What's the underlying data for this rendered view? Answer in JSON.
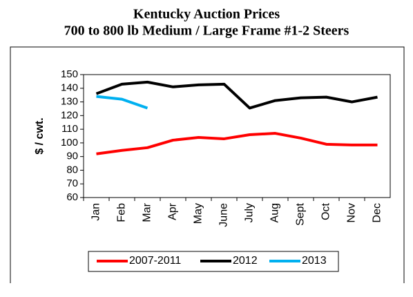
{
  "chart_data": {
    "type": "line",
    "title": "Kentucky Auction Prices",
    "subtitle": "700 to 800 lb Medium / Large Frame #1-2 Steers",
    "y_label": "$ / cwt.",
    "categories": [
      "Jan",
      "Feb",
      "Mar",
      "Apr",
      "May",
      "June",
      "July",
      "Aug",
      "Sept",
      "Oct",
      "Nov",
      "Dec"
    ],
    "series": [
      {
        "name": "2007-2011",
        "color": "#ff0000",
        "values": [
          92,
          94.5,
          96.5,
          102,
          104,
          103,
          106,
          107,
          103.5,
          99,
          98.5,
          98.5
        ]
      },
      {
        "name": "2012",
        "color": "#000000",
        "values": [
          136,
          143,
          144.5,
          141,
          142.5,
          143,
          125.5,
          131,
          133,
          133.5,
          130,
          133.5
        ]
      },
      {
        "name": "2013",
        "color": "#00b0f0",
        "values": [
          134,
          132,
          125.5,
          null,
          null,
          null,
          null,
          null,
          null,
          null,
          null,
          null
        ]
      }
    ],
    "ylim": [
      60,
      150
    ],
    "yticks": [
      60,
      70,
      80,
      90,
      100,
      110,
      120,
      130,
      140,
      150
    ],
    "grid": false,
    "legend": "bottom"
  }
}
